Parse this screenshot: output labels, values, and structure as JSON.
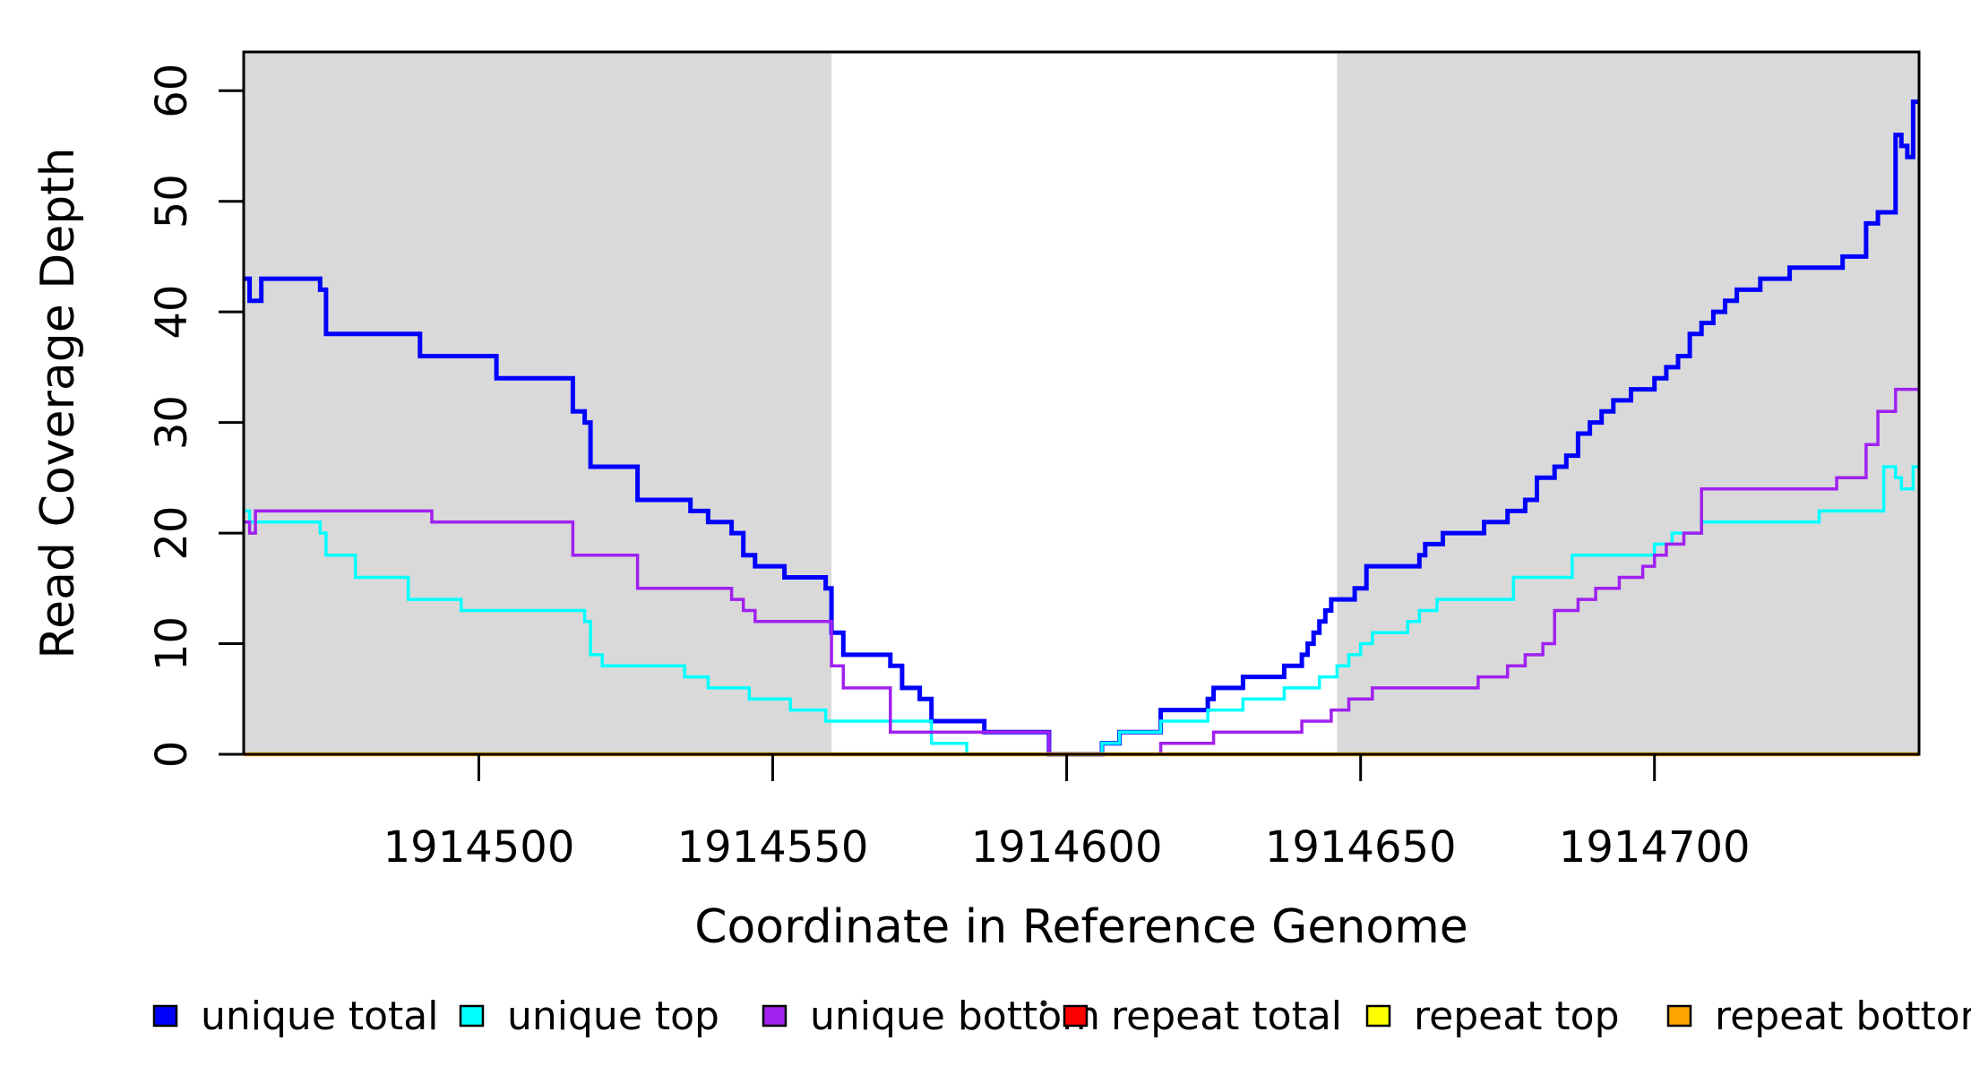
{
  "chart_data": {
    "type": "line",
    "title": "",
    "xlabel": "Coordinate in Reference Genome",
    "ylabel": "Read Coverage Depth",
    "xlim": [
      1914460,
      1914745
    ],
    "ylim": [
      0,
      63.5
    ],
    "x_ticks": [
      1914500,
      1914550,
      1914600,
      1914650,
      1914700
    ],
    "y_ticks": [
      0,
      10,
      20,
      30,
      40,
      50,
      60
    ],
    "grid": false,
    "plot_background": "#FFFFFF",
    "shaded_regions": [
      {
        "x0": 1914460,
        "x1": 1914560,
        "color": "#D9D9D9"
      },
      {
        "x0": 1914646,
        "x1": 1914745,
        "color": "#D9D9D9"
      }
    ],
    "legend_position": "bottom",
    "legend": [
      {
        "label": "unique total",
        "color": "#0000FF"
      },
      {
        "label": "unique top",
        "color": "#00FFFF"
      },
      {
        "label": "unique bottom",
        "color": "#A020F0"
      },
      {
        "label": "repeat total",
        "color": "#FF0000"
      },
      {
        "label": "repeat top",
        "color": "#FFFF00"
      },
      {
        "label": "repeat bottom",
        "color": "#FFA500"
      }
    ],
    "has_stray_dot_before_repeat_total": true,
    "series": [
      {
        "name": "unique total",
        "color": "#0000FF",
        "line_width": 5,
        "steps": [
          [
            1914460,
            43
          ],
          [
            1914461,
            41
          ],
          [
            1914463,
            43
          ],
          [
            1914473,
            42
          ],
          [
            1914474,
            38
          ],
          [
            1914490,
            36
          ],
          [
            1914503,
            34
          ],
          [
            1914516,
            31
          ],
          [
            1914518,
            30
          ],
          [
            1914519,
            26
          ],
          [
            1914527,
            23
          ],
          [
            1914536,
            22
          ],
          [
            1914539,
            21
          ],
          [
            1914543,
            20
          ],
          [
            1914545,
            18
          ],
          [
            1914547,
            17
          ],
          [
            1914552,
            16
          ],
          [
            1914559,
            15
          ],
          [
            1914560,
            11
          ],
          [
            1914562,
            9
          ],
          [
            1914570,
            8
          ],
          [
            1914572,
            6
          ],
          [
            1914575,
            5
          ],
          [
            1914577,
            3
          ],
          [
            1914586,
            2
          ],
          [
            1914597,
            0
          ],
          [
            1914606,
            1
          ],
          [
            1914609,
            2
          ],
          [
            1914616,
            4
          ],
          [
            1914624,
            5
          ],
          [
            1914625,
            6
          ],
          [
            1914630,
            7
          ],
          [
            1914637,
            8
          ],
          [
            1914640,
            9
          ],
          [
            1914641,
            10
          ],
          [
            1914642,
            11
          ],
          [
            1914643,
            12
          ],
          [
            1914644,
            13
          ],
          [
            1914645,
            14
          ],
          [
            1914649,
            15
          ],
          [
            1914651,
            17
          ],
          [
            1914660,
            18
          ],
          [
            1914661,
            19
          ],
          [
            1914664,
            20
          ],
          [
            1914671,
            21
          ],
          [
            1914675,
            22
          ],
          [
            1914678,
            23
          ],
          [
            1914680,
            25
          ],
          [
            1914683,
            26
          ],
          [
            1914685,
            27
          ],
          [
            1914687,
            29
          ],
          [
            1914689,
            30
          ],
          [
            1914691,
            31
          ],
          [
            1914693,
            32
          ],
          [
            1914696,
            33
          ],
          [
            1914700,
            34
          ],
          [
            1914702,
            35
          ],
          [
            1914704,
            36
          ],
          [
            1914706,
            38
          ],
          [
            1914708,
            39
          ],
          [
            1914710,
            40
          ],
          [
            1914712,
            41
          ],
          [
            1914714,
            42
          ],
          [
            1914718,
            43
          ],
          [
            1914723,
            44
          ],
          [
            1914732,
            45
          ],
          [
            1914736,
            48
          ],
          [
            1914738,
            49
          ],
          [
            1914741,
            56
          ],
          [
            1914742,
            55
          ],
          [
            1914743,
            54
          ],
          [
            1914744,
            59
          ]
        ]
      },
      {
        "name": "unique top",
        "color": "#00FFFF",
        "line_width": 3.5,
        "steps": [
          [
            1914460,
            22
          ],
          [
            1914461,
            21
          ],
          [
            1914473,
            20
          ],
          [
            1914474,
            18
          ],
          [
            1914479,
            16
          ],
          [
            1914488,
            14
          ],
          [
            1914497,
            13
          ],
          [
            1914518,
            12
          ],
          [
            1914519,
            9
          ],
          [
            1914521,
            8
          ],
          [
            1914535,
            7
          ],
          [
            1914539,
            6
          ],
          [
            1914546,
            5
          ],
          [
            1914553,
            4
          ],
          [
            1914559,
            3
          ],
          [
            1914577,
            1
          ],
          [
            1914583,
            0
          ],
          [
            1914606,
            1
          ],
          [
            1914609,
            2
          ],
          [
            1914616,
            3
          ],
          [
            1914624,
            4
          ],
          [
            1914630,
            5
          ],
          [
            1914637,
            6
          ],
          [
            1914643,
            7
          ],
          [
            1914646,
            8
          ],
          [
            1914648,
            9
          ],
          [
            1914650,
            10
          ],
          [
            1914652,
            11
          ],
          [
            1914658,
            12
          ],
          [
            1914660,
            13
          ],
          [
            1914663,
            14
          ],
          [
            1914676,
            16
          ],
          [
            1914686,
            18
          ],
          [
            1914700,
            19
          ],
          [
            1914703,
            20
          ],
          [
            1914708,
            21
          ],
          [
            1914728,
            22
          ],
          [
            1914739,
            26
          ],
          [
            1914741,
            25
          ],
          [
            1914742,
            24
          ],
          [
            1914744,
            26
          ]
        ]
      },
      {
        "name": "unique bottom",
        "color": "#A020F0",
        "line_width": 3.5,
        "steps": [
          [
            1914460,
            21
          ],
          [
            1914461,
            20
          ],
          [
            1914462,
            22
          ],
          [
            1914492,
            21
          ],
          [
            1914516,
            18
          ],
          [
            1914527,
            15
          ],
          [
            1914543,
            14
          ],
          [
            1914545,
            13
          ],
          [
            1914547,
            12
          ],
          [
            1914560,
            8
          ],
          [
            1914562,
            6
          ],
          [
            1914570,
            2
          ],
          [
            1914597,
            0
          ],
          [
            1914616,
            1
          ],
          [
            1914625,
            2
          ],
          [
            1914640,
            3
          ],
          [
            1914645,
            4
          ],
          [
            1914648,
            5
          ],
          [
            1914652,
            6
          ],
          [
            1914670,
            7
          ],
          [
            1914675,
            8
          ],
          [
            1914678,
            9
          ],
          [
            1914681,
            10
          ],
          [
            1914683,
            13
          ],
          [
            1914687,
            14
          ],
          [
            1914690,
            15
          ],
          [
            1914694,
            16
          ],
          [
            1914698,
            17
          ],
          [
            1914700,
            18
          ],
          [
            1914702,
            19
          ],
          [
            1914705,
            20
          ],
          [
            1914708,
            24
          ],
          [
            1914731,
            25
          ],
          [
            1914736,
            28
          ],
          [
            1914738,
            31
          ],
          [
            1914741,
            33
          ]
        ]
      },
      {
        "name": "repeat total",
        "color": "#FF0000",
        "line_width": 3,
        "steps": [
          [
            1914460,
            0
          ]
        ]
      },
      {
        "name": "repeat top",
        "color": "#FFFF00",
        "line_width": 3,
        "steps": [
          [
            1914460,
            0
          ]
        ]
      },
      {
        "name": "repeat bottom",
        "color": "#FFA500",
        "line_width": 4.5,
        "steps": [
          [
            1914460,
            0
          ]
        ]
      }
    ]
  }
}
